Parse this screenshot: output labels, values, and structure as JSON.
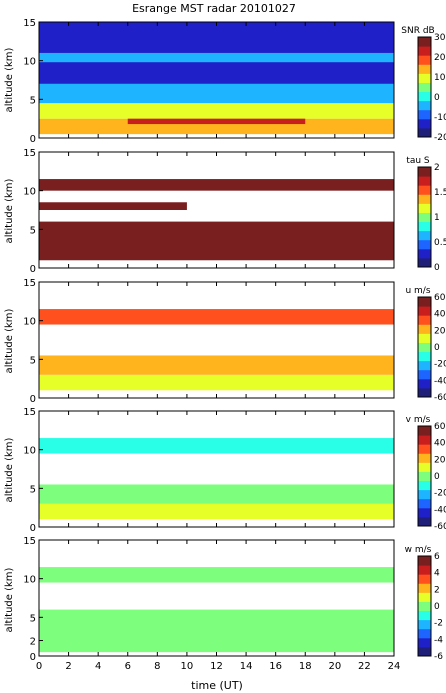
{
  "title": "Esrange MST radar 20101027",
  "x_axis": {
    "label": "time (UT)",
    "range": [
      0,
      24
    ],
    "ticks": [
      "0",
      "2",
      "4",
      "6",
      "8",
      "10",
      "12",
      "14",
      "16",
      "18",
      "20",
      "22",
      "24"
    ]
  },
  "colormap": [
    "#1f1f7a",
    "#2020c8",
    "#1e64ff",
    "#1eb4ff",
    "#28ffe6",
    "#7dff7d",
    "#e6ff28",
    "#ffb41e",
    "#ff501e",
    "#c81e1e",
    "#7a1f1f"
  ],
  "chart_data": [
    {
      "type": "heatmap",
      "quantity": "SNR",
      "colorbar_label": "SNR dB",
      "ylabel": "altitude (km)",
      "ylim": [
        0,
        15
      ],
      "yticks": [
        "0",
        "5",
        "10",
        "15"
      ],
      "clim": [
        -20,
        30
      ],
      "cticks": [
        "30",
        "20",
        "10",
        "0",
        "-10",
        "-20"
      ],
      "layers": [
        {
          "alt": [
            0.5,
            2.5
          ],
          "t": [
            0,
            24
          ],
          "value": 14
        },
        {
          "alt": [
            1.8,
            3.2
          ],
          "t": [
            6,
            18
          ],
          "value": 24
        },
        {
          "alt": [
            2.5,
            4.5
          ],
          "t": [
            0,
            24
          ],
          "value": 8
        },
        {
          "alt": [
            4.5,
            7
          ],
          "t": [
            0,
            24
          ],
          "value": -6
        },
        {
          "alt": [
            7,
            15
          ],
          "t": [
            0,
            24
          ],
          "value": -14
        },
        {
          "alt": [
            9.8,
            11
          ],
          "t": [
            0,
            24
          ],
          "value": -4
        }
      ]
    },
    {
      "type": "heatmap",
      "quantity": "tau",
      "colorbar_label": "tau S",
      "ylabel": "altitude (km)",
      "ylim": [
        0,
        15
      ],
      "yticks": [
        "0",
        "5",
        "10",
        "15"
      ],
      "clim": [
        0,
        2
      ],
      "cticks": [
        "2",
        "1.5",
        "1",
        "0.5",
        "0"
      ],
      "layers": [
        {
          "alt": [
            1,
            6
          ],
          "t": [
            0,
            24
          ],
          "value": 2.0
        },
        {
          "alt": [
            10,
            11.5
          ],
          "t": [
            0,
            24
          ],
          "value": 2.0
        },
        {
          "alt": [
            7.5,
            8.5
          ],
          "t": [
            0,
            10
          ],
          "value": 2.0
        }
      ]
    },
    {
      "type": "heatmap",
      "quantity": "u",
      "colorbar_label": "u m/s",
      "ylabel": "altitude (km)",
      "ylim": [
        0,
        15
      ],
      "yticks": [
        "0",
        "5",
        "10",
        "15"
      ],
      "clim": [
        -60,
        60
      ],
      "cticks": [
        "60",
        "40",
        "20",
        "0",
        "-20",
        "-40",
        "-60"
      ],
      "layers": [
        {
          "alt": [
            1,
            3
          ],
          "t": [
            0,
            24
          ],
          "value": 12
        },
        {
          "alt": [
            3,
            5.5
          ],
          "t": [
            0,
            24
          ],
          "value": 18
        },
        {
          "alt": [
            9.5,
            11.5
          ],
          "t": [
            0,
            24
          ],
          "value": 28
        }
      ]
    },
    {
      "type": "heatmap",
      "quantity": "v",
      "colorbar_label": "v m/s",
      "ylabel": "altitude (km)",
      "ylim": [
        0,
        15
      ],
      "yticks": [
        "0",
        "5",
        "10",
        "15"
      ],
      "clim": [
        -60,
        60
      ],
      "cticks": [
        "60",
        "40",
        "20",
        "0",
        "-20",
        "-40",
        "-60"
      ],
      "layers": [
        {
          "alt": [
            1,
            3
          ],
          "t": [
            0,
            24
          ],
          "value": 8
        },
        {
          "alt": [
            3,
            5.5
          ],
          "t": [
            0,
            24
          ],
          "value": 2
        },
        {
          "alt": [
            9.5,
            11.5
          ],
          "t": [
            0,
            24
          ],
          "value": -8
        }
      ]
    },
    {
      "type": "heatmap",
      "quantity": "w",
      "colorbar_label": "w m/s",
      "ylabel": "altitude (km)",
      "ylim": [
        0,
        15
      ],
      "yticks": [
        "0",
        "2",
        "5",
        "10",
        "15"
      ],
      "clim": [
        -6,
        6
      ],
      "cticks": [
        "6",
        "4",
        "2",
        "0",
        "-2",
        "-4",
        "-6"
      ],
      "layers": [
        {
          "alt": [
            0.5,
            6
          ],
          "t": [
            0,
            24
          ],
          "value": 0.3
        },
        {
          "alt": [
            9.5,
            11.5
          ],
          "t": [
            0,
            24
          ],
          "value": 0.3
        }
      ]
    }
  ]
}
